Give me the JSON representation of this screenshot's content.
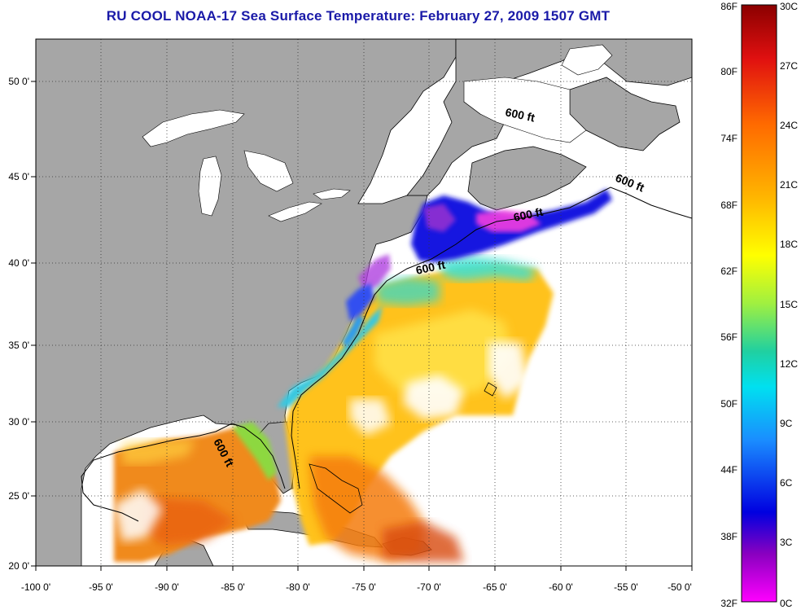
{
  "title": "RU COOL  NOAA-17  Sea Surface Temperature:  February 27, 2009 1507 GMT",
  "map": {
    "lon_range": [
      -100,
      -50
    ],
    "lat_range": [
      20,
      52.5
    ],
    "lon_ticks": [
      "-100 0'",
      "-95 0'",
      "-90 0'",
      "-85 0'",
      "-80 0'",
      "-75 0'",
      "-70 0'",
      "-65 0'",
      "-60 0'",
      "-55 0'",
      "-50 0'"
    ],
    "lat_ticks": [
      "50 0'",
      "45 0'",
      "40 0'",
      "35 0'",
      "30 0'",
      "25 0'",
      "20 0'"
    ],
    "contour_label": "600 ft",
    "colors": {
      "land": "#a6a6a6",
      "ocean": "#ffffff",
      "grid": "#333333"
    }
  },
  "colorbar": {
    "fahrenheit_labels": [
      "86F",
      "80F",
      "74F",
      "68F",
      "62F",
      "56F",
      "50F",
      "44F",
      "38F",
      "32F"
    ],
    "celsius_labels": [
      "30C",
      "27C",
      "24C",
      "21C",
      "18C",
      "15C",
      "12C",
      "9C",
      "6C",
      "3C",
      "0C"
    ],
    "gradient_colors": [
      "#8b0000",
      "#e01010",
      "#ff6a00",
      "#ffb400",
      "#ffff00",
      "#a0f040",
      "#20d0a0",
      "#00e0f0",
      "#1a8cff",
      "#0000e0",
      "#8a00c0",
      "#ff00ff"
    ]
  }
}
